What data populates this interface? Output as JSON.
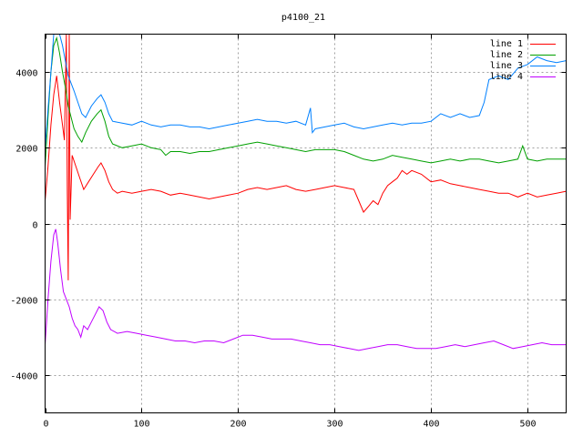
{
  "chart_data": {
    "type": "line",
    "title": "p4100_21",
    "xlabel": "",
    "ylabel": "",
    "xlim": [
      0,
      540
    ],
    "ylim": [
      -5000,
      5000
    ],
    "xticks": [
      0,
      100,
      200,
      300,
      400,
      500
    ],
    "yticks": [
      -4000,
      -2000,
      0,
      2000,
      4000
    ],
    "grid": true,
    "legend_position": "top-right",
    "series": [
      {
        "name": "line 1",
        "color": "#ff0000",
        "points": [
          [
            0,
            600
          ],
          [
            3,
            1500
          ],
          [
            6,
            2600
          ],
          [
            9,
            3400
          ],
          [
            12,
            3900
          ],
          [
            15,
            3200
          ],
          [
            18,
            2600
          ],
          [
            20,
            2200
          ],
          [
            22,
            5000
          ],
          [
            23,
            800
          ],
          [
            24,
            -1500
          ],
          [
            25,
            5000
          ],
          [
            26,
            100
          ],
          [
            28,
            1800
          ],
          [
            32,
            1500
          ],
          [
            36,
            1200
          ],
          [
            40,
            900
          ],
          [
            45,
            1100
          ],
          [
            50,
            1300
          ],
          [
            55,
            1500
          ],
          [
            58,
            1600
          ],
          [
            62,
            1400
          ],
          [
            66,
            1100
          ],
          [
            70,
            900
          ],
          [
            75,
            800
          ],
          [
            80,
            850
          ],
          [
            90,
            800
          ],
          [
            100,
            850
          ],
          [
            110,
            900
          ],
          [
            120,
            850
          ],
          [
            130,
            750
          ],
          [
            140,
            800
          ],
          [
            150,
            750
          ],
          [
            160,
            700
          ],
          [
            170,
            650
          ],
          [
            180,
            700
          ],
          [
            190,
            750
          ],
          [
            200,
            800
          ],
          [
            210,
            900
          ],
          [
            220,
            950
          ],
          [
            230,
            900
          ],
          [
            240,
            950
          ],
          [
            250,
            1000
          ],
          [
            260,
            900
          ],
          [
            270,
            850
          ],
          [
            280,
            900
          ],
          [
            290,
            950
          ],
          [
            300,
            1000
          ],
          [
            310,
            950
          ],
          [
            320,
            900
          ],
          [
            325,
            600
          ],
          [
            330,
            300
          ],
          [
            335,
            450
          ],
          [
            340,
            600
          ],
          [
            345,
            500
          ],
          [
            350,
            800
          ],
          [
            355,
            1000
          ],
          [
            360,
            1100
          ],
          [
            365,
            1200
          ],
          [
            370,
            1400
          ],
          [
            375,
            1300
          ],
          [
            380,
            1400
          ],
          [
            390,
            1300
          ],
          [
            400,
            1100
          ],
          [
            410,
            1150
          ],
          [
            420,
            1050
          ],
          [
            430,
            1000
          ],
          [
            440,
            950
          ],
          [
            450,
            900
          ],
          [
            460,
            850
          ],
          [
            470,
            800
          ],
          [
            480,
            800
          ],
          [
            490,
            700
          ],
          [
            500,
            800
          ],
          [
            510,
            700
          ],
          [
            520,
            750
          ],
          [
            530,
            800
          ],
          [
            540,
            850
          ]
        ]
      },
      {
        "name": "line 2",
        "color": "#00a000",
        "points": [
          [
            0,
            1500
          ],
          [
            3,
            2800
          ],
          [
            6,
            4000
          ],
          [
            9,
            4700
          ],
          [
            12,
            4900
          ],
          [
            15,
            4500
          ],
          [
            18,
            4000
          ],
          [
            21,
            3600
          ],
          [
            24,
            3100
          ],
          [
            27,
            2800
          ],
          [
            30,
            2500
          ],
          [
            34,
            2300
          ],
          [
            38,
            2150
          ],
          [
            42,
            2400
          ],
          [
            48,
            2700
          ],
          [
            54,
            2900
          ],
          [
            58,
            3000
          ],
          [
            62,
            2700
          ],
          [
            66,
            2300
          ],
          [
            70,
            2100
          ],
          [
            80,
            2000
          ],
          [
            90,
            2050
          ],
          [
            100,
            2100
          ],
          [
            110,
            2000
          ],
          [
            120,
            1950
          ],
          [
            125,
            1800
          ],
          [
            130,
            1900
          ],
          [
            140,
            1900
          ],
          [
            150,
            1850
          ],
          [
            160,
            1900
          ],
          [
            170,
            1900
          ],
          [
            180,
            1950
          ],
          [
            190,
            2000
          ],
          [
            200,
            2050
          ],
          [
            210,
            2100
          ],
          [
            220,
            2150
          ],
          [
            230,
            2100
          ],
          [
            240,
            2050
          ],
          [
            250,
            2000
          ],
          [
            260,
            1950
          ],
          [
            270,
            1900
          ],
          [
            280,
            1950
          ],
          [
            290,
            1950
          ],
          [
            300,
            1950
          ],
          [
            310,
            1900
          ],
          [
            320,
            1800
          ],
          [
            330,
            1700
          ],
          [
            340,
            1650
          ],
          [
            350,
            1700
          ],
          [
            360,
            1800
          ],
          [
            370,
            1750
          ],
          [
            380,
            1700
          ],
          [
            390,
            1650
          ],
          [
            400,
            1600
          ],
          [
            410,
            1650
          ],
          [
            420,
            1700
          ],
          [
            430,
            1650
          ],
          [
            440,
            1700
          ],
          [
            450,
            1700
          ],
          [
            460,
            1650
          ],
          [
            470,
            1600
          ],
          [
            480,
            1650
          ],
          [
            490,
            1700
          ],
          [
            495,
            2050
          ],
          [
            500,
            1700
          ],
          [
            510,
            1650
          ],
          [
            520,
            1700
          ],
          [
            530,
            1700
          ],
          [
            540,
            1700
          ]
        ]
      },
      {
        "name": "line 3",
        "color": "#0080ff",
        "points": [
          [
            0,
            2000
          ],
          [
            3,
            3000
          ],
          [
            6,
            4000
          ],
          [
            9,
            5000
          ],
          [
            12,
            5000
          ],
          [
            15,
            5000
          ],
          [
            18,
            4700
          ],
          [
            21,
            4300
          ],
          [
            24,
            3900
          ],
          [
            27,
            3700
          ],
          [
            30,
            3500
          ],
          [
            34,
            3200
          ],
          [
            38,
            2900
          ],
          [
            42,
            2800
          ],
          [
            48,
            3100
          ],
          [
            54,
            3300
          ],
          [
            58,
            3400
          ],
          [
            62,
            3200
          ],
          [
            66,
            2900
          ],
          [
            70,
            2700
          ],
          [
            80,
            2650
          ],
          [
            90,
            2600
          ],
          [
            100,
            2700
          ],
          [
            110,
            2600
          ],
          [
            120,
            2550
          ],
          [
            130,
            2600
          ],
          [
            140,
            2600
          ],
          [
            150,
            2550
          ],
          [
            160,
            2550
          ],
          [
            170,
            2500
          ],
          [
            180,
            2550
          ],
          [
            190,
            2600
          ],
          [
            200,
            2650
          ],
          [
            210,
            2700
          ],
          [
            220,
            2750
          ],
          [
            230,
            2700
          ],
          [
            240,
            2700
          ],
          [
            250,
            2650
          ],
          [
            260,
            2700
          ],
          [
            270,
            2600
          ],
          [
            275,
            3050
          ],
          [
            277,
            2400
          ],
          [
            280,
            2500
          ],
          [
            290,
            2550
          ],
          [
            300,
            2600
          ],
          [
            310,
            2650
          ],
          [
            320,
            2550
          ],
          [
            330,
            2500
          ],
          [
            340,
            2550
          ],
          [
            350,
            2600
          ],
          [
            360,
            2650
          ],
          [
            370,
            2600
          ],
          [
            380,
            2650
          ],
          [
            390,
            2650
          ],
          [
            400,
            2700
          ],
          [
            410,
            2900
          ],
          [
            420,
            2800
          ],
          [
            430,
            2900
          ],
          [
            440,
            2800
          ],
          [
            450,
            2850
          ],
          [
            455,
            3200
          ],
          [
            460,
            3800
          ],
          [
            470,
            3900
          ],
          [
            480,
            3800
          ],
          [
            490,
            4100
          ],
          [
            500,
            4200
          ],
          [
            510,
            4400
          ],
          [
            520,
            4300
          ],
          [
            530,
            4250
          ],
          [
            540,
            4300
          ]
        ]
      },
      {
        "name": "line 4",
        "color": "#c000ff",
        "points": [
          [
            0,
            -3200
          ],
          [
            3,
            -2000
          ],
          [
            6,
            -1000
          ],
          [
            9,
            -300
          ],
          [
            11,
            -150
          ],
          [
            13,
            -500
          ],
          [
            16,
            -1200
          ],
          [
            19,
            -1800
          ],
          [
            22,
            -2000
          ],
          [
            25,
            -2200
          ],
          [
            28,
            -2500
          ],
          [
            31,
            -2700
          ],
          [
            34,
            -2800
          ],
          [
            37,
            -3000
          ],
          [
            40,
            -2700
          ],
          [
            44,
            -2800
          ],
          [
            48,
            -2600
          ],
          [
            52,
            -2400
          ],
          [
            56,
            -2200
          ],
          [
            60,
            -2300
          ],
          [
            64,
            -2600
          ],
          [
            68,
            -2800
          ],
          [
            75,
            -2900
          ],
          [
            85,
            -2850
          ],
          [
            95,
            -2900
          ],
          [
            105,
            -2950
          ],
          [
            115,
            -3000
          ],
          [
            125,
            -3050
          ],
          [
            135,
            -3100
          ],
          [
            145,
            -3100
          ],
          [
            155,
            -3150
          ],
          [
            165,
            -3100
          ],
          [
            175,
            -3100
          ],
          [
            185,
            -3150
          ],
          [
            195,
            -3050
          ],
          [
            205,
            -2950
          ],
          [
            215,
            -2950
          ],
          [
            225,
            -3000
          ],
          [
            235,
            -3050
          ],
          [
            245,
            -3050
          ],
          [
            255,
            -3050
          ],
          [
            265,
            -3100
          ],
          [
            275,
            -3150
          ],
          [
            285,
            -3200
          ],
          [
            295,
            -3200
          ],
          [
            305,
            -3250
          ],
          [
            315,
            -3300
          ],
          [
            325,
            -3350
          ],
          [
            335,
            -3300
          ],
          [
            345,
            -3250
          ],
          [
            355,
            -3200
          ],
          [
            365,
            -3200
          ],
          [
            375,
            -3250
          ],
          [
            385,
            -3300
          ],
          [
            395,
            -3300
          ],
          [
            405,
            -3300
          ],
          [
            415,
            -3250
          ],
          [
            425,
            -3200
          ],
          [
            435,
            -3250
          ],
          [
            445,
            -3200
          ],
          [
            455,
            -3150
          ],
          [
            465,
            -3100
          ],
          [
            475,
            -3200
          ],
          [
            485,
            -3300
          ],
          [
            495,
            -3250
          ],
          [
            505,
            -3200
          ],
          [
            515,
            -3150
          ],
          [
            525,
            -3200
          ],
          [
            535,
            -3200
          ],
          [
            540,
            -3200
          ]
        ]
      }
    ]
  }
}
